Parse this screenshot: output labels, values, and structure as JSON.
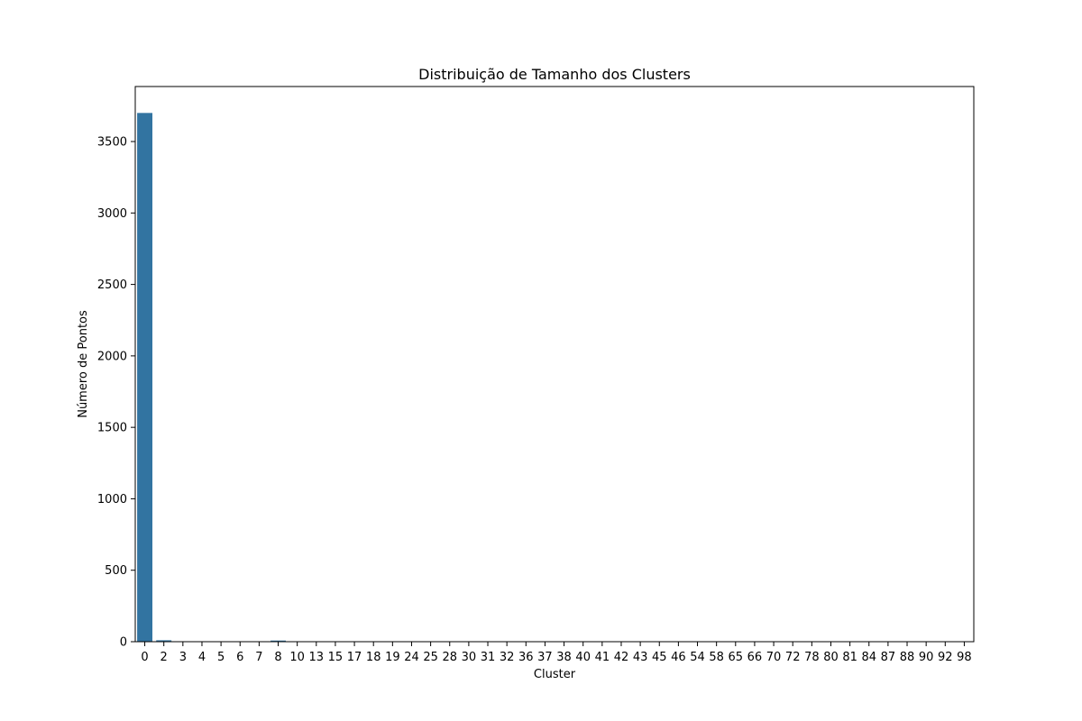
{
  "chart_data": {
    "type": "bar",
    "title": "Distribuição de Tamanho dos Clusters",
    "xlabel": "Cluster",
    "ylabel": "Número de Pontos",
    "categories": [
      "0",
      "2",
      "3",
      "4",
      "5",
      "6",
      "7",
      "8",
      "10",
      "13",
      "15",
      "17",
      "18",
      "19",
      "24",
      "25",
      "28",
      "30",
      "31",
      "32",
      "36",
      "37",
      "38",
      "40",
      "41",
      "42",
      "43",
      "45",
      "46",
      "54",
      "58",
      "65",
      "66",
      "70",
      "72",
      "78",
      "80",
      "81",
      "84",
      "87",
      "88",
      "90",
      "92",
      "98"
    ],
    "values": [
      3700,
      10,
      2,
      2,
      2,
      2,
      2,
      8,
      2,
      2,
      2,
      2,
      2,
      2,
      2,
      2,
      2,
      2,
      2,
      2,
      2,
      2,
      2,
      2,
      2,
      2,
      2,
      2,
      2,
      2,
      2,
      2,
      2,
      2,
      2,
      2,
      2,
      2,
      2,
      2,
      2,
      2,
      2,
      2
    ],
    "ylim": [
      0,
      3885
    ],
    "yticks": [
      0,
      500,
      1000,
      1500,
      2000,
      2500,
      3000,
      3500
    ],
    "bar_color": "#3274a1",
    "grid": false,
    "legend": "none"
  }
}
